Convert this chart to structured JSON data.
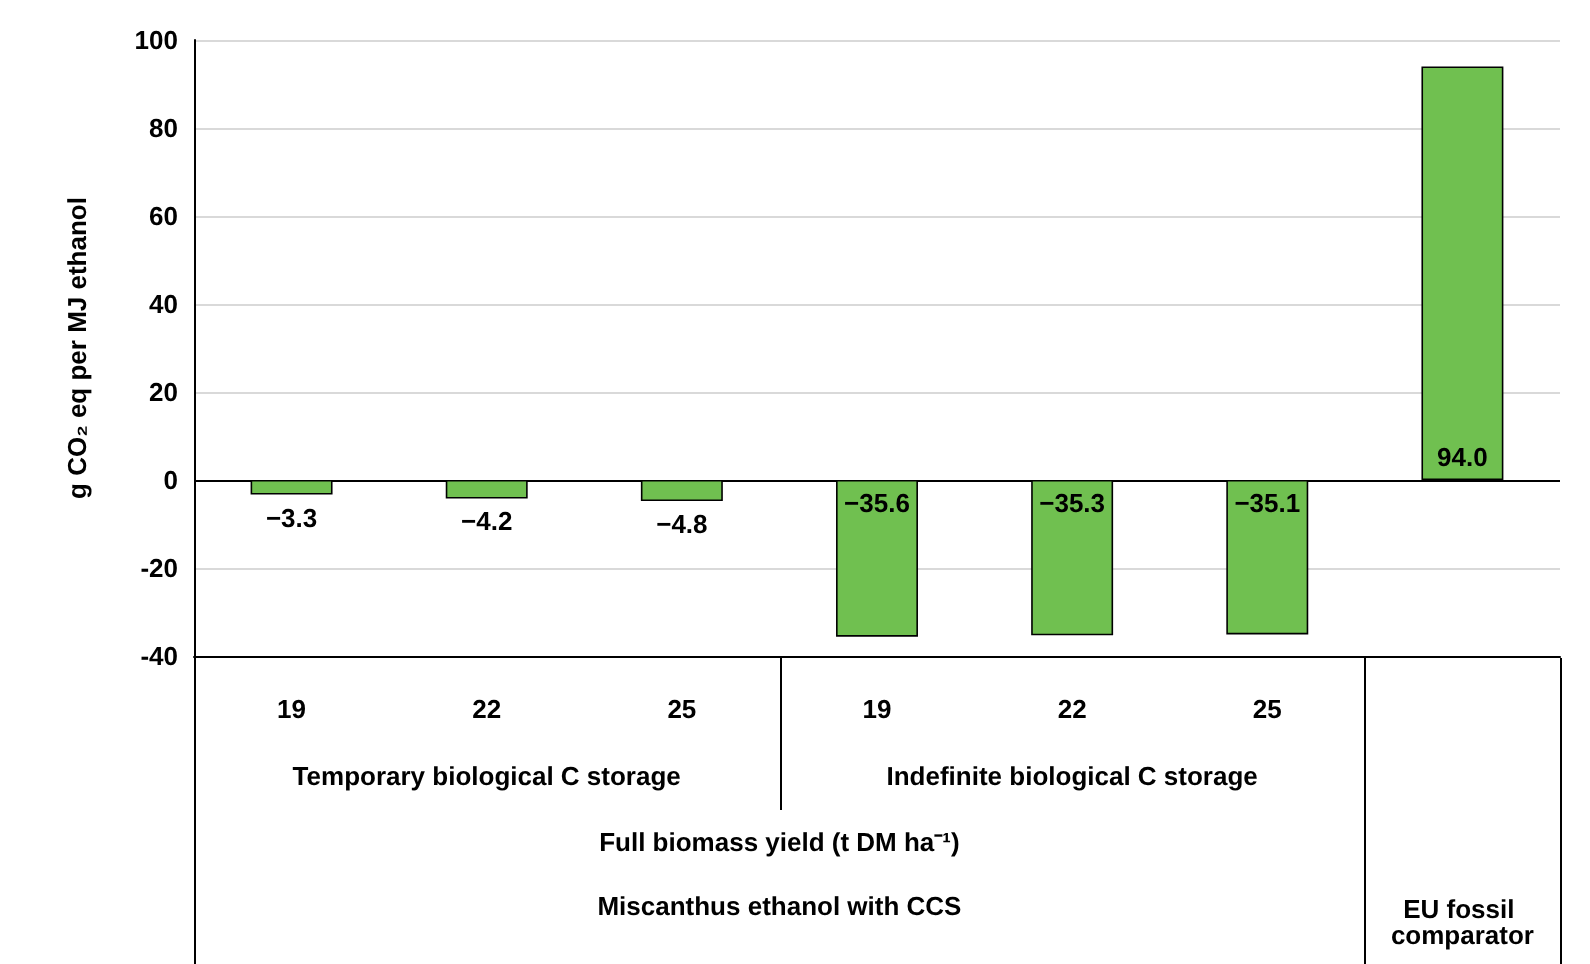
{
  "chart_data": {
    "type": "bar",
    "ylabel": "g CO₂ eq per MJ ethanol",
    "xlabel": "Full biomass yield (t DM ha⁻¹)",
    "categories": [
      "19",
      "22",
      "25",
      "19",
      "22",
      "25",
      null
    ],
    "values": [
      -3.3,
      -4.2,
      -4.8,
      -35.6,
      -35.3,
      -35.1,
      94.0
    ],
    "value_labels": [
      "−3.3",
      "−4.2",
      "−4.8",
      "−35.6",
      "−35.3",
      "−35.1",
      "94.0"
    ],
    "color": "#70c050",
    "ylim": [
      -40,
      100
    ],
    "yticks": [
      -40,
      -20,
      0,
      20,
      40,
      60,
      80,
      100
    ],
    "grid": "y",
    "annotations": [
      "Temporary biological C storage",
      "Indefinite biological C storage",
      "Miscanthus ethanol with CCS",
      "EU fossil comparator"
    ]
  }
}
